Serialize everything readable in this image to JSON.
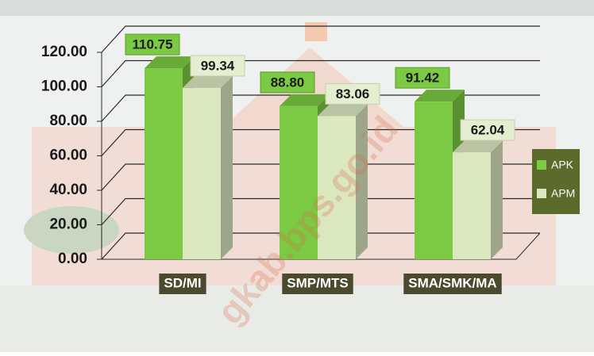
{
  "chart_data": {
    "type": "bar3d",
    "categories": [
      "SD/MI",
      "SMP/MTS",
      "SMA/SMK/MA"
    ],
    "series": [
      {
        "name": "APK",
        "color": "#7cc943",
        "values": [
          110.75,
          88.8,
          91.42
        ],
        "value_labels": [
          "110.75",
          "88.80",
          "91.42"
        ]
      },
      {
        "name": "APM",
        "color": "#dbe7bf",
        "values": [
          99.34,
          83.06,
          62.04
        ],
        "value_labels": [
          "99.34",
          "83.06",
          "62.04"
        ]
      }
    ],
    "ylim": [
      0,
      120
    ],
    "yticks": [
      {
        "value": 0,
        "label": "0.00"
      },
      {
        "value": 20,
        "label": "20.00"
      },
      {
        "value": 40,
        "label": "40.00"
      },
      {
        "value": 60,
        "label": "60.00"
      },
      {
        "value": 80,
        "label": "80.00"
      },
      {
        "value": 100,
        "label": "100.00"
      },
      {
        "value": 120,
        "label": "120.00"
      }
    ],
    "grid": true,
    "legend": "right",
    "watermark": "gkab.bps.go.id"
  }
}
